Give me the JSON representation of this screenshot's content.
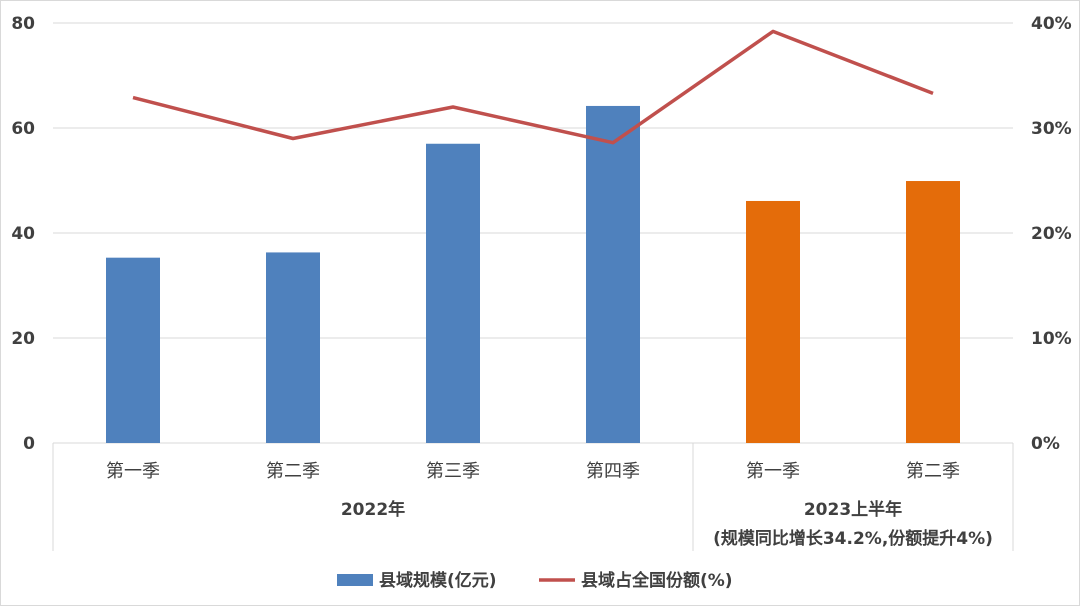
{
  "chart_data": {
    "type": "bar",
    "categories": [
      "第一季",
      "第二季",
      "第三季",
      "第四季",
      "第一季",
      "第二季"
    ],
    "groups": [
      {
        "label": "2022年",
        "sub_label": "",
        "category_count": 4
      },
      {
        "label": "2023上半年",
        "sub_label": "(规模同比增长34.2%,份额提升4%)",
        "category_count": 2
      }
    ],
    "series": [
      {
        "name": "县域规模(亿元)",
        "type": "bar",
        "axis": "left",
        "values": [
          35.3,
          36.3,
          57.0,
          64.2,
          46.1,
          49.9
        ],
        "colors": [
          "#4f81bd",
          "#4f81bd",
          "#4f81bd",
          "#4f81bd",
          "#e46c0a",
          "#e46c0a"
        ],
        "legend_color": "#4f81bd"
      },
      {
        "name": "县域占全国份额(%)",
        "type": "line",
        "axis": "right",
        "values": [
          32.9,
          29.0,
          32.0,
          28.6,
          39.2,
          33.3
        ],
        "color": "#c0504d"
      }
    ],
    "y_left": {
      "min": 0,
      "max": 80,
      "ticks": [
        0,
        20,
        40,
        60,
        80
      ]
    },
    "y_right": {
      "min": 0,
      "max": 40,
      "ticks": [
        "0%",
        "10%",
        "20%",
        "30%",
        "40%"
      ]
    },
    "grid": true,
    "legend": "bottom",
    "gridline_color": "#d9d9d9"
  }
}
